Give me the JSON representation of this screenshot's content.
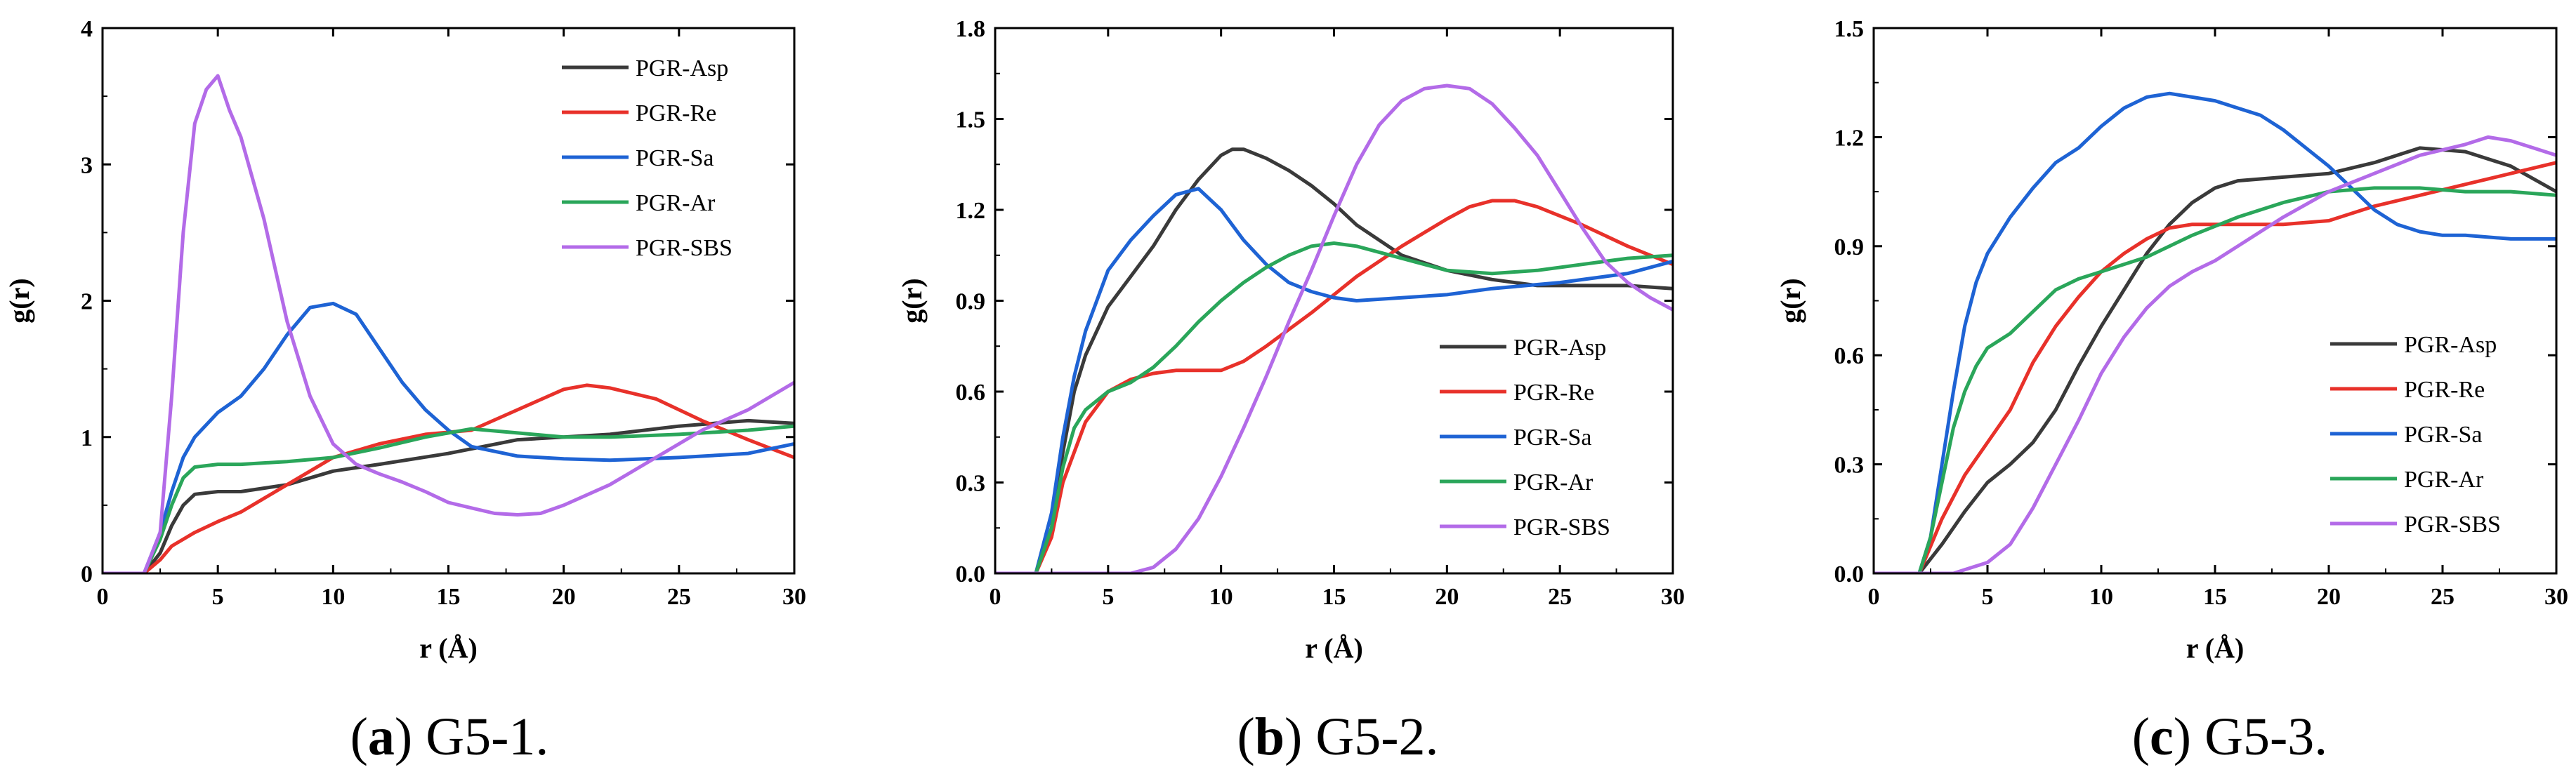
{
  "colors": {
    "PGR-Asp": "#3a3a3a",
    "PGR-Re": "#e8312a",
    "PGR-Sa": "#1e63d4",
    "PGR-Ar": "#2aa65a",
    "PGR-SBS": "#b36be8"
  },
  "chart_data": [
    {
      "type": "line",
      "panel": "a",
      "caption_letter": "a",
      "caption_text": " G5-1.",
      "caption_open": "(",
      "caption_close": ")",
      "xlabel": "r (Å)",
      "ylabel": "g(r)",
      "xlim": [
        0,
        30
      ],
      "ylim": [
        0,
        4
      ],
      "xticks": [
        0,
        5,
        10,
        15,
        20,
        25,
        30
      ],
      "yticks": [
        0,
        1,
        2,
        3,
        4
      ],
      "ytick_labels": [
        "0",
        "1",
        "2",
        "3",
        "4"
      ],
      "legend_position": "top-right",
      "series": [
        {
          "name": "PGR-Asp",
          "x": [
            0,
            1.8,
            2.5,
            3,
            3.5,
            4,
            5,
            6,
            8,
            10,
            12,
            15,
            18,
            20,
            22,
            25,
            28,
            30
          ],
          "y": [
            0,
            0,
            0.15,
            0.35,
            0.5,
            0.58,
            0.6,
            0.6,
            0.65,
            0.75,
            0.8,
            0.88,
            0.98,
            1.0,
            1.02,
            1.08,
            1.12,
            1.1
          ]
        },
        {
          "name": "PGR-Re",
          "x": [
            0,
            1.8,
            2.5,
            3,
            4,
            5,
            6,
            7,
            8,
            9,
            10,
            12,
            14,
            16,
            18,
            20,
            21,
            22,
            24,
            26,
            28,
            30
          ],
          "y": [
            0,
            0,
            0.1,
            0.2,
            0.3,
            0.38,
            0.45,
            0.55,
            0.65,
            0.75,
            0.85,
            0.95,
            1.02,
            1.05,
            1.2,
            1.35,
            1.38,
            1.36,
            1.28,
            1.12,
            0.98,
            0.85
          ]
        },
        {
          "name": "PGR-Sa",
          "x": [
            0,
            1.8,
            2.5,
            3,
            3.5,
            4,
            5,
            6,
            7,
            8,
            9,
            10,
            11,
            12,
            13,
            14,
            15,
            16,
            18,
            20,
            22,
            25,
            28,
            30
          ],
          "y": [
            0,
            0,
            0.3,
            0.6,
            0.85,
            1.0,
            1.18,
            1.3,
            1.5,
            1.75,
            1.95,
            1.98,
            1.9,
            1.65,
            1.4,
            1.2,
            1.05,
            0.93,
            0.86,
            0.84,
            0.83,
            0.85,
            0.88,
            0.95
          ]
        },
        {
          "name": "PGR-Ar",
          "x": [
            0,
            1.8,
            2.5,
            3,
            3.5,
            4,
            5,
            6,
            8,
            10,
            12,
            14,
            16,
            18,
            20,
            22,
            25,
            28,
            30
          ],
          "y": [
            0,
            0,
            0.25,
            0.5,
            0.7,
            0.78,
            0.8,
            0.8,
            0.82,
            0.85,
            0.92,
            1.0,
            1.06,
            1.03,
            1.0,
            1.0,
            1.02,
            1.05,
            1.08
          ]
        },
        {
          "name": "PGR-SBS",
          "x": [
            0,
            1.8,
            2.5,
            3,
            3.5,
            4,
            4.5,
            5,
            5.5,
            6,
            6.5,
            7,
            8,
            9,
            10,
            11,
            12,
            13,
            14,
            15,
            16,
            17,
            18,
            19,
            20,
            22,
            24,
            26,
            28,
            30
          ],
          "y": [
            0,
            0,
            0.3,
            1.3,
            2.5,
            3.3,
            3.55,
            3.65,
            3.4,
            3.2,
            2.9,
            2.6,
            1.85,
            1.3,
            0.95,
            0.8,
            0.73,
            0.67,
            0.6,
            0.52,
            0.48,
            0.44,
            0.43,
            0.44,
            0.5,
            0.65,
            0.85,
            1.05,
            1.2,
            1.4
          ]
        }
      ]
    },
    {
      "type": "line",
      "panel": "b",
      "caption_letter": "b",
      "caption_text": " G5-2.",
      "caption_open": "(",
      "caption_close": ")",
      "xlabel": "r (Å)",
      "ylabel": "g(r)",
      "xlim": [
        0,
        30
      ],
      "ylim": [
        0,
        1.8
      ],
      "xticks": [
        0,
        5,
        10,
        15,
        20,
        25,
        30
      ],
      "yticks": [
        0,
        0.3,
        0.6,
        0.9,
        1.2,
        1.5,
        1.8
      ],
      "ytick_labels": [
        "0.0",
        "0.3",
        "0.6",
        "0.9",
        "1.2",
        "1.5",
        "1.8"
      ],
      "legend_position": "bottom-right",
      "series": [
        {
          "name": "PGR-Asp",
          "x": [
            0,
            1.8,
            2.5,
            3,
            3.5,
            4,
            5,
            6,
            7,
            8,
            9,
            10,
            10.5,
            11,
            12,
            13,
            14,
            15,
            16,
            18,
            20,
            22,
            24,
            26,
            28,
            30
          ],
          "y": [
            0,
            0,
            0.15,
            0.4,
            0.6,
            0.72,
            0.88,
            0.98,
            1.08,
            1.2,
            1.3,
            1.38,
            1.4,
            1.4,
            1.37,
            1.33,
            1.28,
            1.22,
            1.15,
            1.05,
            1.0,
            0.97,
            0.95,
            0.95,
            0.95,
            0.94
          ]
        },
        {
          "name": "PGR-Re",
          "x": [
            0,
            1.8,
            2.5,
            3,
            4,
            5,
            6,
            7,
            8,
            9,
            10,
            11,
            12,
            14,
            16,
            18,
            20,
            21,
            22,
            23,
            24,
            26,
            28,
            30
          ],
          "y": [
            0,
            0,
            0.12,
            0.3,
            0.5,
            0.6,
            0.64,
            0.66,
            0.67,
            0.67,
            0.67,
            0.7,
            0.75,
            0.86,
            0.98,
            1.08,
            1.17,
            1.21,
            1.23,
            1.23,
            1.21,
            1.15,
            1.08,
            1.02
          ]
        },
        {
          "name": "PGR-Sa",
          "x": [
            0,
            1.8,
            2.5,
            3,
            3.5,
            4,
            5,
            6,
            7,
            8,
            9,
            10,
            11,
            12,
            13,
            14,
            15,
            16,
            18,
            20,
            22,
            25,
            28,
            30
          ],
          "y": [
            0,
            0,
            0.2,
            0.45,
            0.65,
            0.8,
            1.0,
            1.1,
            1.18,
            1.25,
            1.27,
            1.2,
            1.1,
            1.02,
            0.96,
            0.93,
            0.91,
            0.9,
            0.91,
            0.92,
            0.94,
            0.96,
            0.99,
            1.03
          ]
        },
        {
          "name": "PGR-Ar",
          "x": [
            0,
            1.8,
            2.5,
            3,
            3.5,
            4,
            5,
            6,
            7,
            8,
            9,
            10,
            11,
            12,
            13,
            14,
            15,
            16,
            18,
            20,
            22,
            24,
            26,
            28,
            30
          ],
          "y": [
            0,
            0,
            0.15,
            0.35,
            0.48,
            0.54,
            0.6,
            0.63,
            0.68,
            0.75,
            0.83,
            0.9,
            0.96,
            1.01,
            1.05,
            1.08,
            1.09,
            1.08,
            1.04,
            1.0,
            0.99,
            1.0,
            1.02,
            1.04,
            1.05
          ]
        },
        {
          "name": "PGR-SBS",
          "x": [
            0,
            6,
            7,
            8,
            9,
            10,
            11,
            12,
            13,
            14,
            15,
            16,
            17,
            18,
            19,
            20,
            21,
            22,
            23,
            24,
            25,
            26,
            27,
            28,
            29,
            30
          ],
          "y": [
            0,
            0,
            0.02,
            0.08,
            0.18,
            0.32,
            0.48,
            0.65,
            0.83,
            1.0,
            1.18,
            1.35,
            1.48,
            1.56,
            1.6,
            1.61,
            1.6,
            1.55,
            1.47,
            1.38,
            1.26,
            1.14,
            1.03,
            0.96,
            0.91,
            0.87
          ]
        }
      ]
    },
    {
      "type": "line",
      "panel": "c",
      "caption_letter": "c",
      "caption_text": " G5-3.",
      "caption_open": "(",
      "caption_close": ")",
      "xlabel": "r (Å)",
      "ylabel": "g(r)",
      "xlim": [
        0,
        30
      ],
      "ylim": [
        0,
        1.5
      ],
      "xticks": [
        0,
        5,
        10,
        15,
        20,
        25,
        30
      ],
      "yticks": [
        0,
        0.3,
        0.6,
        0.9,
        1.2,
        1.5
      ],
      "ytick_labels": [
        "0.0",
        "0.3",
        "0.6",
        "0.9",
        "1.2",
        "1.5"
      ],
      "legend_position": "bottom-right",
      "series": [
        {
          "name": "PGR-Asp",
          "x": [
            0,
            2,
            3,
            4,
            5,
            6,
            7,
            8,
            9,
            10,
            11,
            12,
            13,
            14,
            15,
            16,
            18,
            20,
            22,
            24,
            26,
            28,
            30
          ],
          "y": [
            0,
            0,
            0.08,
            0.17,
            0.25,
            0.3,
            0.36,
            0.45,
            0.57,
            0.68,
            0.78,
            0.88,
            0.96,
            1.02,
            1.06,
            1.08,
            1.09,
            1.1,
            1.13,
            1.17,
            1.16,
            1.12,
            1.05
          ]
        },
        {
          "name": "PGR-Re",
          "x": [
            0,
            2,
            3,
            4,
            5,
            6,
            7,
            8,
            9,
            10,
            11,
            12,
            13,
            14,
            15,
            16,
            18,
            20,
            22,
            24,
            26,
            28,
            30
          ],
          "y": [
            0,
            0,
            0.15,
            0.27,
            0.36,
            0.45,
            0.58,
            0.68,
            0.76,
            0.83,
            0.88,
            0.92,
            0.95,
            0.96,
            0.96,
            0.96,
            0.96,
            0.97,
            1.01,
            1.04,
            1.07,
            1.1,
            1.13
          ]
        },
        {
          "name": "PGR-Sa",
          "x": [
            0,
            2,
            2.5,
            3,
            3.5,
            4,
            4.5,
            5,
            6,
            7,
            8,
            9,
            10,
            11,
            12,
            13,
            14,
            15,
            16,
            17,
            18,
            19,
            20,
            21,
            22,
            23,
            24,
            25,
            26,
            28,
            30
          ],
          "y": [
            0,
            0,
            0.1,
            0.3,
            0.5,
            0.68,
            0.8,
            0.88,
            0.98,
            1.06,
            1.13,
            1.17,
            1.23,
            1.28,
            1.31,
            1.32,
            1.31,
            1.3,
            1.28,
            1.26,
            1.22,
            1.17,
            1.12,
            1.06,
            1.0,
            0.96,
            0.94,
            0.93,
            0.93,
            0.92,
            0.92
          ]
        },
        {
          "name": "PGR-Ar",
          "x": [
            0,
            2,
            2.5,
            3,
            3.5,
            4,
            4.5,
            5,
            6,
            7,
            8,
            9,
            10,
            12,
            14,
            16,
            18,
            20,
            22,
            24,
            26,
            28,
            30
          ],
          "y": [
            0,
            0,
            0.1,
            0.25,
            0.4,
            0.5,
            0.57,
            0.62,
            0.66,
            0.72,
            0.78,
            0.81,
            0.83,
            0.87,
            0.93,
            0.98,
            1.02,
            1.05,
            1.06,
            1.06,
            1.05,
            1.05,
            1.04
          ]
        },
        {
          "name": "PGR-SBS",
          "x": [
            0,
            3.5,
            4,
            5,
            6,
            7,
            8,
            9,
            10,
            11,
            12,
            13,
            14,
            15,
            16,
            18,
            20,
            22,
            24,
            26,
            27,
            28,
            29,
            30
          ],
          "y": [
            0,
            0,
            0.01,
            0.03,
            0.08,
            0.18,
            0.3,
            0.42,
            0.55,
            0.65,
            0.73,
            0.79,
            0.83,
            0.86,
            0.9,
            0.98,
            1.05,
            1.1,
            1.15,
            1.18,
            1.2,
            1.19,
            1.17,
            1.15
          ]
        }
      ]
    }
  ]
}
